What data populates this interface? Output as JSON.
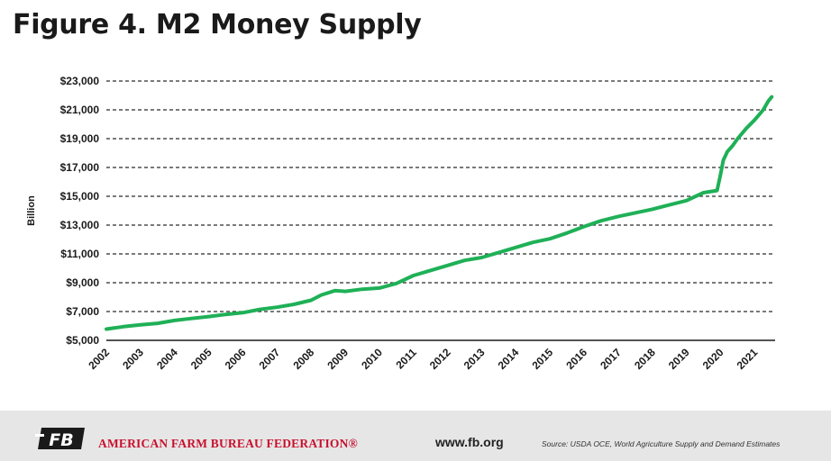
{
  "header": {
    "title": "Figure 4. M2 Money Supply"
  },
  "footer": {
    "org_name": "AMERICAN FARM BUREAU FEDERATION®",
    "logo_text": "FB",
    "website": "www.fb.org",
    "source": "Source: USDA OCE, World Agriculture Supply and Demand Estimates"
  },
  "colors": {
    "line": "#1fb057",
    "grid": "#2a2a2a",
    "footer_bg": "#e6e6e6",
    "brand": "#c8102e"
  },
  "chart_data": {
    "type": "line",
    "title": "Figure 4. M2 Money Supply",
    "xlabel": "",
    "ylabel": "Billion",
    "ylim": [
      5000,
      23000
    ],
    "xlim": [
      2002,
      2021.6
    ],
    "yticks": [
      5000,
      7000,
      9000,
      11000,
      13000,
      15000,
      17000,
      19000,
      21000,
      23000
    ],
    "ytick_labels": [
      "$5,000",
      "$7,000",
      "$9,000",
      "$11,000",
      "$13,000",
      "$15,000",
      "$17,000",
      "$19,000",
      "$21,000",
      "$23,000"
    ],
    "xticks": [
      "2002",
      "2003",
      "2004",
      "2005",
      "2006",
      "2007",
      "2008",
      "2009",
      "2010",
      "2011",
      "2012",
      "2013",
      "2014",
      "2015",
      "2016",
      "2017",
      "2018",
      "2019",
      "2020",
      "2021"
    ],
    "grid": "horizontal-dashed",
    "legend": "none",
    "series": [
      {
        "x": [
          2002.0,
          2002.5,
          2003.0,
          2003.5,
          2004.0,
          2004.5,
          2005.0,
          2005.5,
          2006.0,
          2006.5,
          2007.0,
          2007.5,
          2008.0,
          2008.3,
          2008.7,
          2009.0,
          2009.5,
          2010.0,
          2010.5,
          2011.0,
          2011.5,
          2012.0,
          2012.5,
          2013.0,
          2013.5,
          2014.0,
          2014.5,
          2015.0,
          2015.5,
          2016.0,
          2016.5,
          2017.0,
          2017.5,
          2018.0,
          2018.5,
          2019.0,
          2019.5,
          2019.9,
          2020.0,
          2020.08,
          2020.2,
          2020.35,
          2020.5,
          2020.75,
          2021.0,
          2021.25,
          2021.4,
          2021.5
        ],
        "values": [
          5780,
          5950,
          6080,
          6180,
          6380,
          6520,
          6650,
          6800,
          6920,
          7150,
          7300,
          7500,
          7780,
          8150,
          8450,
          8400,
          8550,
          8630,
          8950,
          9500,
          9850,
          10200,
          10550,
          10750,
          11100,
          11450,
          11800,
          12050,
          12450,
          12900,
          13300,
          13600,
          13850,
          14100,
          14400,
          14700,
          15250,
          15400,
          16500,
          17500,
          18100,
          18500,
          19000,
          19700,
          20300,
          21000,
          21600,
          21900
        ]
      }
    ]
  }
}
